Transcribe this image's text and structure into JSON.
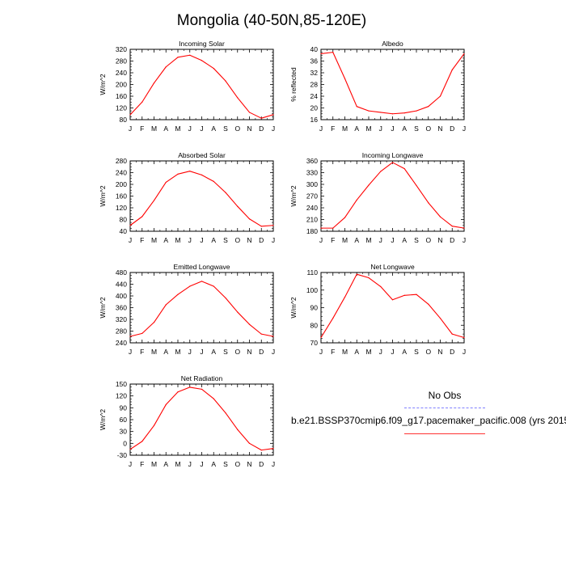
{
  "figure_title": "Mongolia (40-50N,85-120E)",
  "colors": {
    "model_line": "#ff0000",
    "obs_line": "#7f7fff",
    "axis": "#000000"
  },
  "legend": {
    "obs_label": "No Obs",
    "case_label": "b.e21.BSSP370cmip6.f09_g17.pacemaker_pacific.008 (yrs 2015"
  },
  "chart_data": [
    {
      "type": "line",
      "title": "Incoming Solar",
      "ylabel": "W/m^2",
      "categories": [
        "J",
        "F",
        "M",
        "A",
        "M",
        "J",
        "J",
        "A",
        "S",
        "O",
        "N",
        "D",
        "J"
      ],
      "ylim": [
        80,
        320
      ],
      "yticks": [
        80,
        120,
        160,
        200,
        240,
        280,
        320
      ],
      "series": [
        {
          "name": "b.e21.BSSP370cmip6.f09_g17.pacemaker_pacific.008",
          "values": [
            97,
            140,
            205,
            260,
            293,
            300,
            282,
            255,
            212,
            155,
            105,
            85,
            97
          ]
        }
      ]
    },
    {
      "type": "line",
      "title": "Albedo",
      "ylabel": "% reflected",
      "categories": [
        "J",
        "F",
        "M",
        "A",
        "M",
        "J",
        "J",
        "A",
        "S",
        "O",
        "N",
        "D",
        "J"
      ],
      "ylim": [
        16,
        40
      ],
      "yticks": [
        16,
        20,
        24,
        28,
        32,
        36,
        40
      ],
      "series": [
        {
          "name": "b.e21.BSSP370cmip6.f09_g17.pacemaker_pacific.008",
          "values": [
            38.5,
            39,
            30,
            20.5,
            19,
            18.5,
            18,
            18.3,
            19,
            20.5,
            24,
            33,
            38.5
          ]
        }
      ]
    },
    {
      "type": "line",
      "title": "Absorbed Solar",
      "ylabel": "W/m^2",
      "categories": [
        "J",
        "F",
        "M",
        "A",
        "M",
        "J",
        "J",
        "A",
        "S",
        "O",
        "N",
        "D",
        "J"
      ],
      "ylim": [
        40,
        280
      ],
      "yticks": [
        40,
        80,
        120,
        160,
        200,
        240,
        280
      ],
      "series": [
        {
          "name": "b.e21.BSSP370cmip6.f09_g17.pacemaker_pacific.008",
          "values": [
            60,
            90,
            145,
            207,
            235,
            245,
            232,
            210,
            172,
            125,
            82,
            57,
            60
          ]
        }
      ]
    },
    {
      "type": "line",
      "title": "Incoming Longwave",
      "ylabel": "W/m^2",
      "categories": [
        "J",
        "F",
        "M",
        "A",
        "M",
        "J",
        "J",
        "A",
        "S",
        "O",
        "N",
        "D",
        "J"
      ],
      "ylim": [
        180,
        360
      ],
      "yticks": [
        180,
        210,
        240,
        270,
        300,
        330,
        360
      ],
      "series": [
        {
          "name": "b.e21.BSSP370cmip6.f09_g17.pacemaker_pacific.008",
          "values": [
            188,
            188,
            215,
            260,
            298,
            333,
            356,
            340,
            297,
            253,
            217,
            193,
            188
          ]
        }
      ]
    },
    {
      "type": "line",
      "title": "Emitted Longwave",
      "ylabel": "W/m^2",
      "categories": [
        "J",
        "F",
        "M",
        "A",
        "M",
        "J",
        "J",
        "A",
        "S",
        "O",
        "N",
        "D",
        "J"
      ],
      "ylim": [
        240,
        480
      ],
      "yticks": [
        240,
        280,
        320,
        360,
        400,
        440,
        480
      ],
      "series": [
        {
          "name": "b.e21.BSSP370cmip6.f09_g17.pacemaker_pacific.008",
          "values": [
            262,
            272,
            310,
            370,
            405,
            433,
            450,
            433,
            393,
            345,
            303,
            270,
            262
          ]
        }
      ]
    },
    {
      "type": "line",
      "title": "Net Longwave",
      "ylabel": "W/m^2",
      "categories": [
        "J",
        "F",
        "M",
        "A",
        "M",
        "J",
        "J",
        "A",
        "S",
        "O",
        "N",
        "D",
        "J"
      ],
      "ylim": [
        70,
        110
      ],
      "yticks": [
        70,
        80,
        90,
        100,
        110
      ],
      "series": [
        {
          "name": "b.e21.BSSP370cmip6.f09_g17.pacemaker_pacific.008",
          "values": [
            73,
            84,
            96,
            109,
            107,
            102,
            94.5,
            97,
            97.5,
            92,
            84,
            75,
            73
          ]
        }
      ]
    },
    {
      "type": "line",
      "title": "Net Radiation",
      "ylabel": "W/m^2",
      "categories": [
        "J",
        "F",
        "M",
        "A",
        "M",
        "J",
        "J",
        "A",
        "S",
        "O",
        "N",
        "D",
        "J"
      ],
      "ylim": [
        -30,
        150
      ],
      "yticks": [
        -30,
        0,
        30,
        60,
        90,
        120,
        150
      ],
      "series": [
        {
          "name": "b.e21.BSSP370cmip6.f09_g17.pacemaker_pacific.008",
          "values": [
            -15,
            5,
            45,
            98,
            130,
            142,
            137,
            113,
            77,
            35,
            0,
            -17,
            -13
          ]
        }
      ]
    }
  ]
}
